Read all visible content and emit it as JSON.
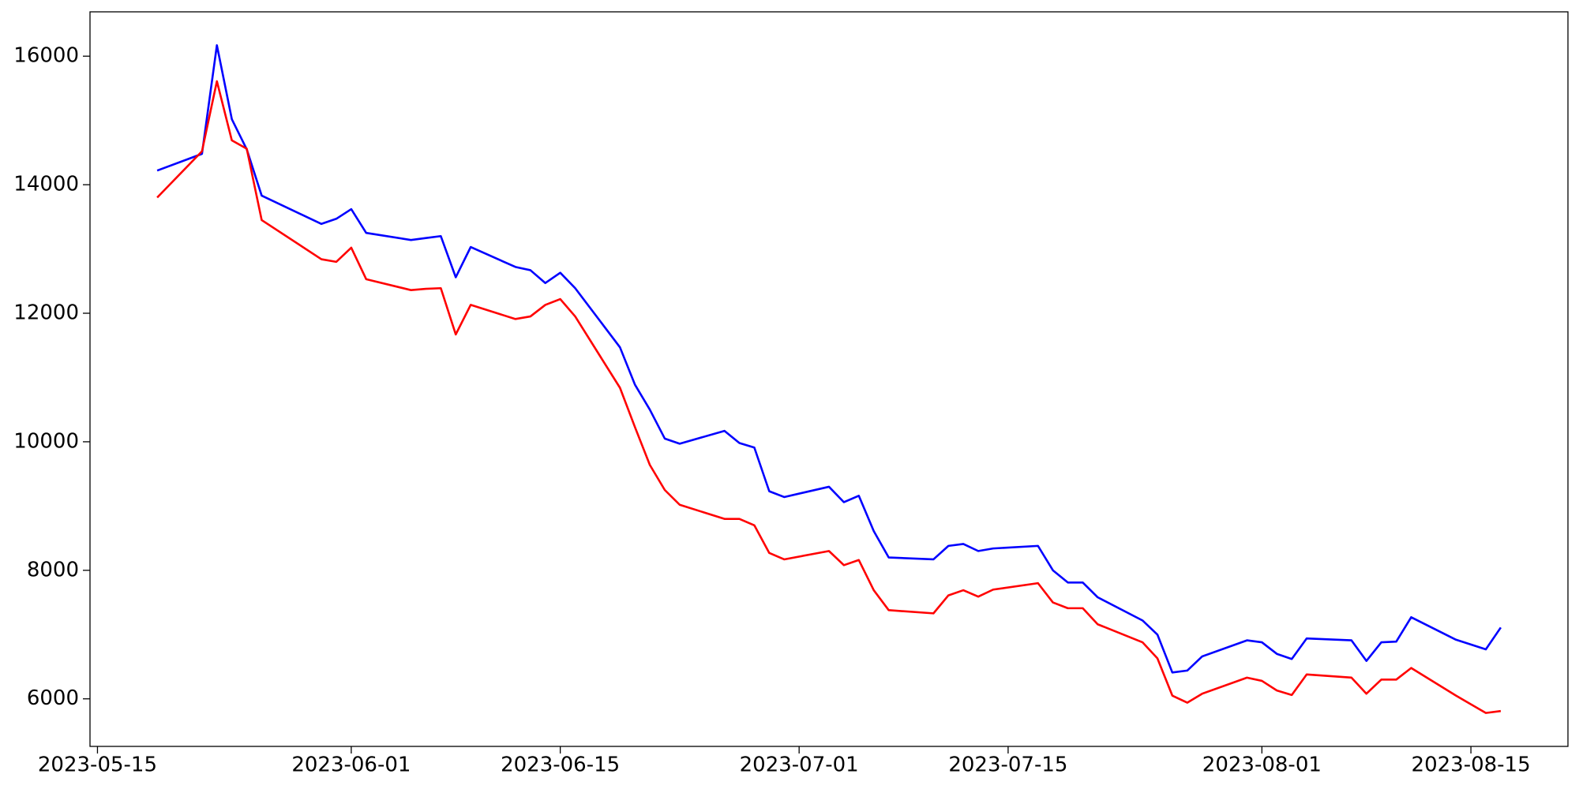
{
  "chart_data": {
    "type": "line",
    "x": [
      "2023-05-19",
      "2023-05-22",
      "2023-05-23",
      "2023-05-24",
      "2023-05-25",
      "2023-05-26",
      "2023-05-30",
      "2023-05-31",
      "2023-06-01",
      "2023-06-02",
      "2023-06-05",
      "2023-06-06",
      "2023-06-07",
      "2023-06-08",
      "2023-06-09",
      "2023-06-12",
      "2023-06-13",
      "2023-06-14",
      "2023-06-15",
      "2023-06-16",
      "2023-06-19",
      "2023-06-20",
      "2023-06-21",
      "2023-06-22",
      "2023-06-23",
      "2023-06-26",
      "2023-06-27",
      "2023-06-28",
      "2023-06-29",
      "2023-06-30",
      "2023-07-03",
      "2023-07-04",
      "2023-07-05",
      "2023-07-06",
      "2023-07-07",
      "2023-07-10",
      "2023-07-11",
      "2023-07-12",
      "2023-07-13",
      "2023-07-14",
      "2023-07-17",
      "2023-07-18",
      "2023-07-19",
      "2023-07-20",
      "2023-07-21",
      "2023-07-24",
      "2023-07-25",
      "2023-07-26",
      "2023-07-27",
      "2023-07-28",
      "2023-07-31",
      "2023-08-01",
      "2023-08-02",
      "2023-08-03",
      "2023-08-04",
      "2023-08-07",
      "2023-08-08",
      "2023-08-09",
      "2023-08-10",
      "2023-08-11",
      "2023-08-14",
      "2023-08-16",
      "2023-08-17"
    ],
    "series": [
      {
        "color": "#0000ff",
        "values": [
          14220,
          14480,
          16170,
          15020,
          14550,
          13830,
          13390,
          13470,
          13620,
          13250,
          13140,
          13170,
          13200,
          12560,
          13030,
          12720,
          12670,
          12470,
          12630,
          12390,
          11470,
          10890,
          10500,
          10050,
          9970,
          10170,
          9980,
          9910,
          9230,
          9140,
          9300,
          9060,
          9160,
          8610,
          8200,
          8170,
          8380,
          8410,
          8300,
          8340,
          8380,
          8000,
          7810,
          7810,
          7580,
          7220,
          7000,
          6410,
          6440,
          6660,
          6910,
          6880,
          6700,
          6620,
          6940,
          6910,
          6590,
          6880,
          6890,
          7270,
          6920,
          6770,
          7110
        ]
      },
      {
        "color": "#ff0000",
        "values": [
          13800,
          14520,
          15610,
          14690,
          14560,
          13450,
          12840,
          12800,
          13020,
          12530,
          12360,
          12380,
          12390,
          11670,
          12130,
          11910,
          11950,
          12130,
          12220,
          11950,
          10840,
          10230,
          9640,
          9250,
          9020,
          8800,
          8800,
          8700,
          8270,
          8170,
          8300,
          8080,
          8160,
          7690,
          7380,
          7330,
          7610,
          7690,
          7590,
          7700,
          7800,
          7500,
          7410,
          7410,
          7160,
          6880,
          6630,
          6050,
          5940,
          6080,
          6330,
          6280,
          6130,
          6060,
          6380,
          6330,
          6080,
          6300,
          6300,
          6480,
          6050,
          5780,
          5810
        ]
      }
    ],
    "xlim": [
      "2023-05-14T12:00Z",
      "2023-08-21T12:00Z"
    ],
    "xticks": [
      "2023-05-15",
      "2023-06-01",
      "2023-06-15",
      "2023-07-01",
      "2023-07-15",
      "2023-08-01",
      "2023-08-15"
    ],
    "ylim": [
      5260,
      16690
    ],
    "yticks": [
      6000,
      8000,
      10000,
      12000,
      14000,
      16000
    ]
  }
}
